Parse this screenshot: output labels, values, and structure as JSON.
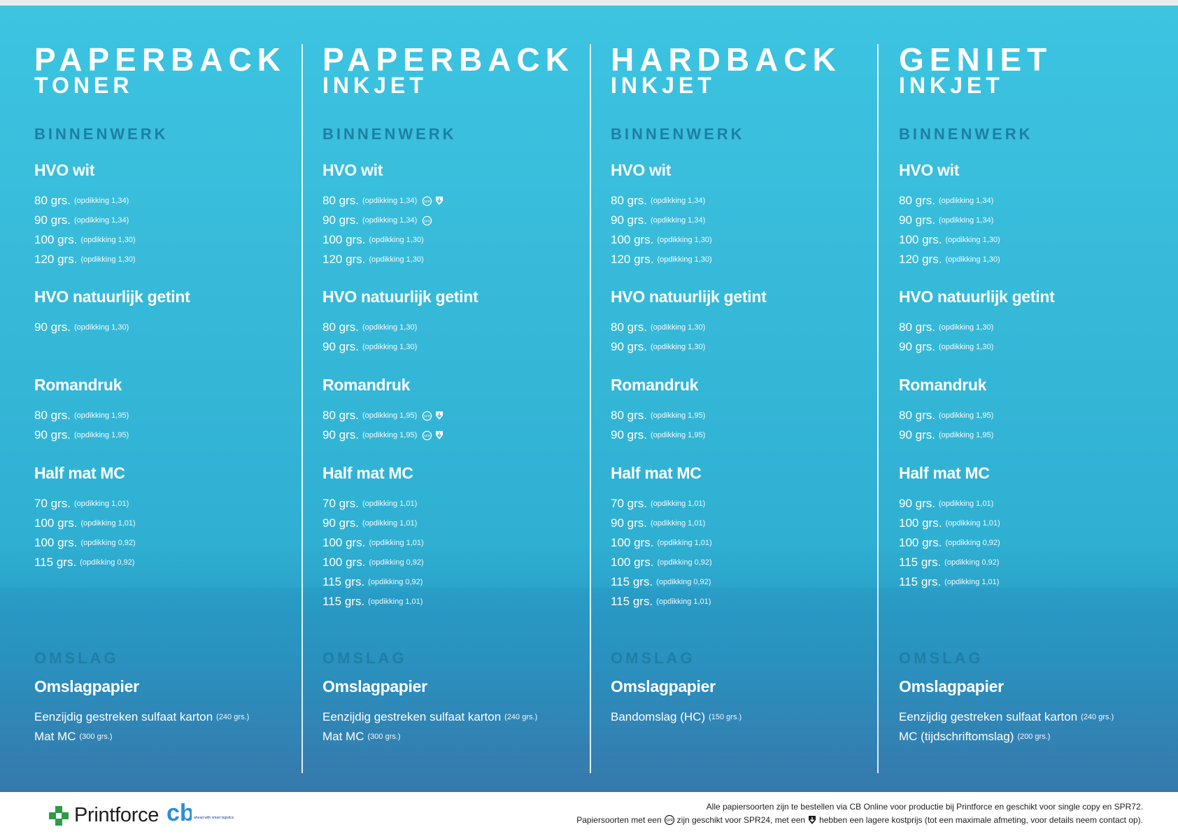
{
  "columns": [
    {
      "title_line1": "PAPERBACK",
      "title_line2": "TONER",
      "binnenwerk_heading": "BINNENWERK",
      "groups": [
        {
          "title": "HVO wit",
          "rows": [
            {
              "main": "80 grs.",
              "sub": "(opdikking 1,34)",
              "marks": []
            },
            {
              "main": "90 grs.",
              "sub": "(opdikking 1,34)",
              "marks": []
            },
            {
              "main": "100 grs.",
              "sub": "(opdikking 1,30)",
              "marks": []
            },
            {
              "main": "120 grs.",
              "sub": "(opdikking 1,30)",
              "marks": []
            }
          ]
        },
        {
          "title": "HVO natuurlijk getint",
          "rows": [
            {
              "main": "90 grs.",
              "sub": "(opdikking 1,30)",
              "marks": []
            }
          ]
        },
        {
          "title": "Romandruk",
          "rows": [
            {
              "main": "80 grs.",
              "sub": "(opdikking 1,95)",
              "marks": []
            },
            {
              "main": "90 grs.",
              "sub": "(opdikking 1,95)",
              "marks": []
            }
          ]
        },
        {
          "title": "Half mat MC",
          "rows": [
            {
              "main": "70 grs.",
              "sub": "(opdikking 1,01)",
              "marks": []
            },
            {
              "main": "100 grs.",
              "sub": "(opdikking 1,01)",
              "marks": []
            },
            {
              "main": "100 grs.",
              "sub": "(opdikking 0,92)",
              "marks": []
            },
            {
              "main": "115 grs.",
              "sub": "(opdikking 0,92)",
              "marks": []
            }
          ]
        }
      ],
      "omslag_heading": "OMSLAG",
      "omslag_title": "Omslagpapier",
      "omslag_rows": [
        {
          "main": "Eenzijdig gestreken sulfaat karton",
          "sub": "(240 grs.)"
        },
        {
          "main": "Mat MC",
          "sub": "(300 grs.)"
        }
      ]
    },
    {
      "title_line1": "PAPERBACK",
      "title_line2": "INKJET",
      "binnenwerk_heading": "BINNENWERK",
      "groups": [
        {
          "title": "HVO wit",
          "rows": [
            {
              "main": "80 grs.",
              "sub": "(opdikking 1,34)",
              "marks": [
                "spr24",
                "down"
              ]
            },
            {
              "main": "90 grs.",
              "sub": "(opdikking 1,34)",
              "marks": [
                "spr24"
              ]
            },
            {
              "main": "100 grs.",
              "sub": "(opdikking 1,30)",
              "marks": []
            },
            {
              "main": "120 grs.",
              "sub": "(opdikking 1,30)",
              "marks": []
            }
          ]
        },
        {
          "title": "HVO natuurlijk getint",
          "rows": [
            {
              "main": "80 grs.",
              "sub": "(opdikking 1,30)",
              "marks": []
            },
            {
              "main": "90 grs.",
              "sub": "(opdikking 1,30)",
              "marks": []
            }
          ]
        },
        {
          "title": "Romandruk",
          "rows": [
            {
              "main": "80 grs.",
              "sub": "(opdikking 1,95)",
              "marks": [
                "spr24",
                "down"
              ]
            },
            {
              "main": "90 grs.",
              "sub": "(opdikking 1,95)",
              "marks": [
                "spr24",
                "down"
              ]
            }
          ]
        },
        {
          "title": "Half mat MC",
          "rows": [
            {
              "main": "70 grs.",
              "sub": "(opdikking 1,01)",
              "marks": []
            },
            {
              "main": "90 grs.",
              "sub": "(opdikking 1,01)",
              "marks": []
            },
            {
              "main": "100 grs.",
              "sub": "(opdikking 1,01)",
              "marks": []
            },
            {
              "main": "100 grs.",
              "sub": "(opdikking 0,92)",
              "marks": []
            },
            {
              "main": "115 grs.",
              "sub": "(opdikking 0,92)",
              "marks": []
            },
            {
              "main": "115 grs.",
              "sub": "(opdikking 1,01)",
              "marks": []
            }
          ]
        }
      ],
      "omslag_heading": "OMSLAG",
      "omslag_title": "Omslagpapier",
      "omslag_rows": [
        {
          "main": "Eenzijdig gestreken sulfaat karton",
          "sub": "(240 grs.)"
        },
        {
          "main": "Mat MC",
          "sub": "(300 grs.)"
        }
      ]
    },
    {
      "title_line1": "HARDBACK",
      "title_line2": "INKJET",
      "binnenwerk_heading": "BINNENWERK",
      "groups": [
        {
          "title": "HVO wit",
          "rows": [
            {
              "main": "80 grs.",
              "sub": "(opdikking 1,34)",
              "marks": []
            },
            {
              "main": "90 grs.",
              "sub": "(opdikking 1,34)",
              "marks": []
            },
            {
              "main": "100 grs.",
              "sub": "(opdikking 1,30)",
              "marks": []
            },
            {
              "main": "120 grs.",
              "sub": "(opdikking 1,30)",
              "marks": []
            }
          ]
        },
        {
          "title": "HVO natuurlijk getint",
          "rows": [
            {
              "main": "80 grs.",
              "sub": "(opdikking 1,30)",
              "marks": []
            },
            {
              "main": "90 grs.",
              "sub": "(opdikking 1,30)",
              "marks": []
            }
          ]
        },
        {
          "title": "Romandruk",
          "rows": [
            {
              "main": "80 grs.",
              "sub": "(opdikking 1,95)",
              "marks": []
            },
            {
              "main": "90 grs.",
              "sub": "(opdikking 1,95)",
              "marks": []
            }
          ]
        },
        {
          "title": "Half mat MC",
          "rows": [
            {
              "main": "70 grs.",
              "sub": "(opdikking 1,01)",
              "marks": []
            },
            {
              "main": "90 grs.",
              "sub": "(opdikking 1,01)",
              "marks": []
            },
            {
              "main": "100 grs.",
              "sub": "(opdikking 1,01)",
              "marks": []
            },
            {
              "main": "100 grs.",
              "sub": "(opdikking 0,92)",
              "marks": []
            },
            {
              "main": "115 grs.",
              "sub": "(opdikking 0,92)",
              "marks": []
            },
            {
              "main": "115 grs.",
              "sub": "(opdikking 1,01)",
              "marks": []
            }
          ]
        }
      ],
      "omslag_heading": "OMSLAG",
      "omslag_title": "Omslagpapier",
      "omslag_rows": [
        {
          "main": "Bandomslag (HC)",
          "sub": "(150 grs.)"
        }
      ]
    },
    {
      "title_line1": "GENIET",
      "title_line2": "INKJET",
      "binnenwerk_heading": "BINNENWERK",
      "groups": [
        {
          "title": "HVO wit",
          "rows": [
            {
              "main": "80 grs.",
              "sub": "(opdikking 1,34)",
              "marks": []
            },
            {
              "main": "90 grs.",
              "sub": "(opdikking 1,34)",
              "marks": []
            },
            {
              "main": "100 grs.",
              "sub": "(opdikking 1,30)",
              "marks": []
            },
            {
              "main": "120 grs.",
              "sub": "(opdikking 1,30)",
              "marks": []
            }
          ]
        },
        {
          "title": "HVO natuurlijk getint",
          "rows": [
            {
              "main": "80 grs.",
              "sub": "(opdikking 1,30)",
              "marks": []
            },
            {
              "main": "90 grs.",
              "sub": "(opdikking 1,30)",
              "marks": []
            }
          ]
        },
        {
          "title": "Romandruk",
          "rows": [
            {
              "main": "80 grs.",
              "sub": "(opdikking 1,95)",
              "marks": []
            },
            {
              "main": "90 grs.",
              "sub": "(opdikking 1,95)",
              "marks": []
            }
          ]
        },
        {
          "title": "Half mat MC",
          "rows": [
            {
              "main": "90 grs.",
              "sub": "(opdikking 1,01)",
              "marks": []
            },
            {
              "main": "100 grs.",
              "sub": "(opdikking 1,01)",
              "marks": []
            },
            {
              "main": "100 grs.",
              "sub": "(opdikking 0,92)",
              "marks": []
            },
            {
              "main": "115 grs.",
              "sub": "(opdikking 0,92)",
              "marks": []
            },
            {
              "main": "115 grs.",
              "sub": "(opdikking 1,01)",
              "marks": []
            }
          ]
        }
      ],
      "omslag_heading": "OMSLAG",
      "omslag_title": "Omslagpapier",
      "omslag_rows": [
        {
          "main": "Eenzijdig gestreken sulfaat karton",
          "sub": "(240 grs.)"
        },
        {
          "main": "MC (tijdschriftomslag)",
          "sub": "(200 grs.)"
        }
      ]
    }
  ],
  "footer": {
    "logo_text": "Printforce",
    "cb_logo_text": "cb",
    "cb_tagline": "ahead with smart logistics",
    "note_line1": "Alle papiersoorten zijn te bestellen via CB Online voor productie bij Printforce en geschikt voor single copy en SPR72.",
    "note_line2_a": "Papiersoorten met een",
    "note_line2_b": "zijn geschikt voor SPR24, met een",
    "note_line2_c": "hebben een lagere kostprijs (tot een maximale afmeting, voor details neem contact op)."
  },
  "icons": {
    "spr24": "spr24-circle-icon",
    "down": "down-arrow-shield-icon"
  },
  "colors": {
    "panel_top": "#3cc4e1",
    "panel_bottom": "#3a86b6",
    "section_heading": "#1f7ea3",
    "printforce_green": "#2e9b47"
  }
}
